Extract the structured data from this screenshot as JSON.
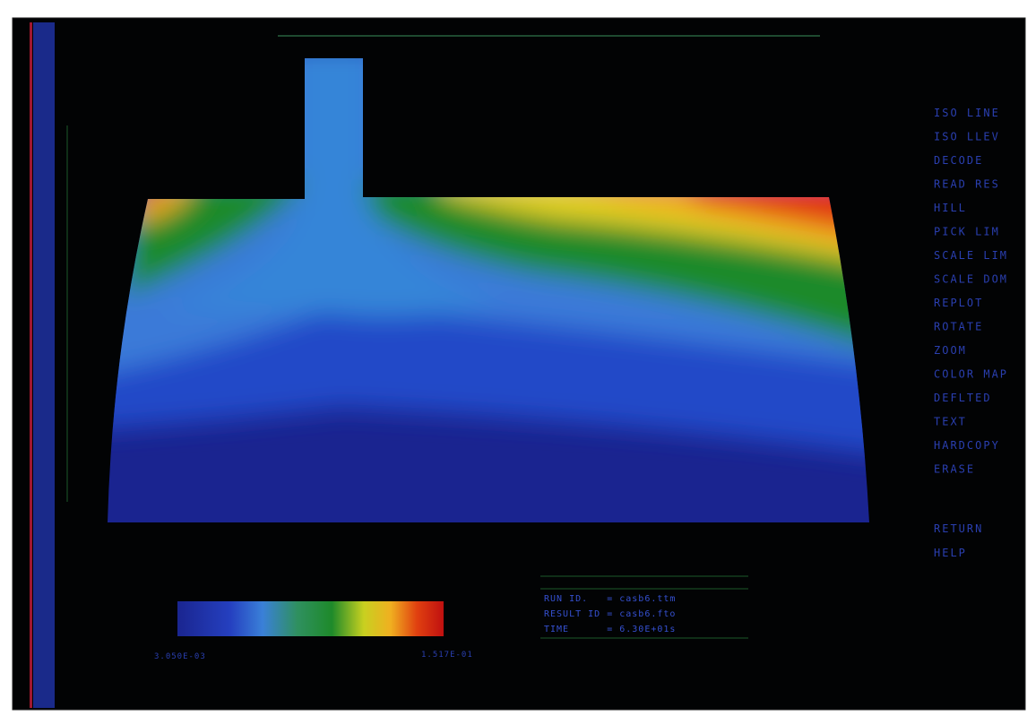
{
  "menu": [
    "ISO LINE",
    "ISO LLEV",
    "DECODE",
    "READ RES",
    "HILL",
    "PICK LIM",
    "SCALE LIM",
    "SCALE DOM",
    "REPLOT",
    "ROTATE",
    "ZOOM",
    "COLOR MAP",
    "DEFLTED",
    "TEXT",
    "HARDCOPY",
    "ERASE",
    "RETURN",
    "HELP"
  ],
  "legend": {
    "min_label": "3.050E-03",
    "max_label": "1.517E-01"
  },
  "info": [
    "RUN ID.   = casb6.ttm",
    "RESULT ID = casb6.fto",
    "TIME      = 6.30E+01s"
  ]
}
